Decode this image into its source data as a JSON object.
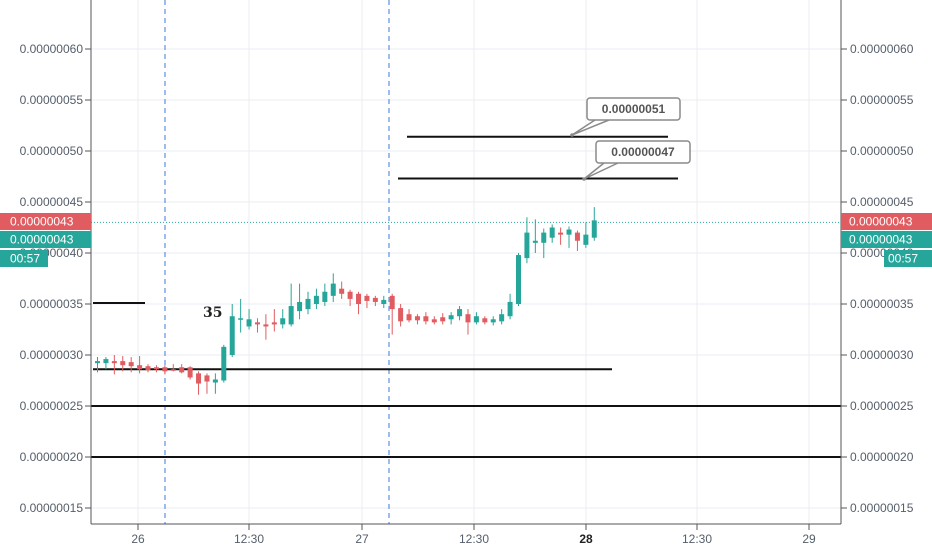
{
  "chart_data": {
    "type": "candlestick",
    "y_ticks": [
      "0.00000015",
      "0.00000020",
      "0.00000025",
      "0.00000030",
      "0.00000035",
      "0.00000040",
      "0.00000045",
      "0.00000050",
      "0.00000055",
      "0.00000060"
    ],
    "ylim": [
      1.35e-07,
      6.45e-07
    ],
    "x_ticks": [
      "26",
      "12:30",
      "27",
      "12:30",
      "28",
      "12:30",
      "29"
    ],
    "x_tick_bold": "28",
    "horizontal_lines": [
      2e-07,
      2.5e-07,
      2.86e-07,
      3.51e-07,
      4.73e-07,
      5.14e-07
    ],
    "price_tags": [
      {
        "label": "0.00000043",
        "value": 4.3e-07,
        "color": "#e05c60"
      },
      {
        "label": "0.00000043",
        "value": 4.3e-07,
        "color": "#26a69a"
      },
      {
        "label": "00:57",
        "color": "#26a69a"
      }
    ],
    "callouts": [
      "0.00000051",
      "0.00000047"
    ],
    "annotation": "35",
    "current_price": 4.3e-07,
    "candles": [
      {
        "o": 2.92e-07,
        "h": 2.98e-07,
        "l": 2.83e-07,
        "c": 2.94e-07
      },
      {
        "o": 2.92e-07,
        "h": 2.98e-07,
        "l": 2.86e-07,
        "c": 2.96e-07
      },
      {
        "o": 2.94e-07,
        "h": 3e-07,
        "l": 2.81e-07,
        "c": 2.92e-07
      },
      {
        "o": 2.94e-07,
        "h": 2.99e-07,
        "l": 2.84e-07,
        "c": 2.9e-07
      },
      {
        "o": 2.93e-07,
        "h": 2.98e-07,
        "l": 2.83e-07,
        "c": 2.89e-07
      },
      {
        "o": 2.9e-07,
        "h": 2.99e-07,
        "l": 2.82e-07,
        "c": 2.86e-07
      },
      {
        "o": 2.89e-07,
        "h": 2.91e-07,
        "l": 2.83e-07,
        "c": 2.85e-07
      },
      {
        "o": 2.88e-07,
        "h": 2.9e-07,
        "l": 2.83e-07,
        "c": 2.86e-07
      },
      {
        "o": 2.88e-07,
        "h": 2.9e-07,
        "l": 2.81e-07,
        "c": 2.84e-07
      },
      {
        "o": 2.86e-07,
        "h": 2.91e-07,
        "l": 2.84e-07,
        "c": 2.85e-07
      },
      {
        "o": 2.88e-07,
        "h": 2.91e-07,
        "l": 2.82e-07,
        "c": 2.83e-07
      },
      {
        "o": 2.88e-07,
        "h": 2.89e-07,
        "l": 2.76e-07,
        "c": 2.78e-07
      },
      {
        "o": 2.82e-07,
        "h": 2.84e-07,
        "l": 2.61e-07,
        "c": 2.72e-07
      },
      {
        "o": 2.8e-07,
        "h": 2.82e-07,
        "l": 2.62e-07,
        "c": 2.74e-07
      },
      {
        "o": 2.73e-07,
        "h": 2.82e-07,
        "l": 2.62e-07,
        "c": 2.76e-07
      },
      {
        "o": 2.75e-07,
        "h": 3.1e-07,
        "l": 2.73e-07,
        "c": 3.08e-07
      },
      {
        "o": 3e-07,
        "h": 3.5e-07,
        "l": 2.98e-07,
        "c": 3.38e-07
      },
      {
        "o": 3.35e-07,
        "h": 3.55e-07,
        "l": 3.22e-07,
        "c": 3.36e-07
      },
      {
        "o": 3.28e-07,
        "h": 3.45e-07,
        "l": 3.25e-07,
        "c": 3.35e-07
      },
      {
        "o": 3.32e-07,
        "h": 3.36e-07,
        "l": 3.22e-07,
        "c": 3.3e-07
      },
      {
        "o": 3.3e-07,
        "h": 3.4e-07,
        "l": 3.15e-07,
        "c": 3.28e-07
      },
      {
        "o": 3.32e-07,
        "h": 3.45e-07,
        "l": 3.23e-07,
        "c": 3.3e-07
      },
      {
        "o": 3.3e-07,
        "h": 3.45e-07,
        "l": 3.26e-07,
        "c": 3.36e-07
      },
      {
        "o": 3.3e-07,
        "h": 3.7e-07,
        "l": 3.28e-07,
        "c": 3.48e-07
      },
      {
        "o": 3.43e-07,
        "h": 3.7e-07,
        "l": 3.35e-07,
        "c": 3.52e-07
      },
      {
        "o": 3.45e-07,
        "h": 3.62e-07,
        "l": 3.4e-07,
        "c": 3.55e-07
      },
      {
        "o": 3.5e-07,
        "h": 3.65e-07,
        "l": 3.45e-07,
        "c": 3.58e-07
      },
      {
        "o": 3.52e-07,
        "h": 3.7e-07,
        "l": 3.48e-07,
        "c": 3.62e-07
      },
      {
        "o": 3.58e-07,
        "h": 3.8e-07,
        "l": 3.52e-07,
        "c": 3.7e-07
      },
      {
        "o": 3.65e-07,
        "h": 3.72e-07,
        "l": 3.55e-07,
        "c": 3.6e-07
      },
      {
        "o": 3.62e-07,
        "h": 3.64e-07,
        "l": 3.48e-07,
        "c": 3.55e-07
      },
      {
        "o": 3.6e-07,
        "h": 3.62e-07,
        "l": 3.4e-07,
        "c": 3.5e-07
      },
      {
        "o": 3.58e-07,
        "h": 3.6e-07,
        "l": 3.46e-07,
        "c": 3.53e-07
      },
      {
        "o": 3.56e-07,
        "h": 3.58e-07,
        "l": 3.48e-07,
        "c": 3.52e-07
      },
      {
        "o": 3.5e-07,
        "h": 3.58e-07,
        "l": 3.46e-07,
        "c": 3.54e-07
      },
      {
        "o": 3.58e-07,
        "h": 3.6e-07,
        "l": 3.2e-07,
        "c": 3.45e-07
      },
      {
        "o": 3.46e-07,
        "h": 3.5e-07,
        "l": 3.28e-07,
        "c": 3.33e-07
      },
      {
        "o": 3.4e-07,
        "h": 3.45e-07,
        "l": 3.32e-07,
        "c": 3.34e-07
      },
      {
        "o": 3.38e-07,
        "h": 3.4e-07,
        "l": 3.3e-07,
        "c": 3.34e-07
      },
      {
        "o": 3.38e-07,
        "h": 3.42e-07,
        "l": 3.3e-07,
        "c": 3.33e-07
      },
      {
        "o": 3.35e-07,
        "h": 3.38e-07,
        "l": 3.3e-07,
        "c": 3.32e-07
      },
      {
        "o": 3.37e-07,
        "h": 3.41e-07,
        "l": 3.3e-07,
        "c": 3.33e-07
      },
      {
        "o": 3.35e-07,
        "h": 3.42e-07,
        "l": 3.3e-07,
        "c": 3.39e-07
      },
      {
        "o": 3.38e-07,
        "h": 3.48e-07,
        "l": 3.34e-07,
        "c": 3.45e-07
      },
      {
        "o": 3.4e-07,
        "h": 3.45e-07,
        "l": 3.2e-07,
        "c": 3.32e-07
      },
      {
        "o": 3.32e-07,
        "h": 3.42e-07,
        "l": 3.3e-07,
        "c": 3.38e-07
      },
      {
        "o": 3.36e-07,
        "h": 3.38e-07,
        "l": 3.3e-07,
        "c": 3.32e-07
      },
      {
        "o": 3.32e-07,
        "h": 3.38e-07,
        "l": 3.29e-07,
        "c": 3.35e-07
      },
      {
        "o": 3.33e-07,
        "h": 3.45e-07,
        "l": 3.3e-07,
        "c": 3.4e-07
      },
      {
        "o": 3.38e-07,
        "h": 3.6e-07,
        "l": 3.35e-07,
        "c": 3.52e-07
      },
      {
        "o": 3.5e-07,
        "h": 4e-07,
        "l": 3.48e-07,
        "c": 3.98e-07
      },
      {
        "o": 3.95e-07,
        "h": 4.35e-07,
        "l": 3.9e-07,
        "c": 4.2e-07
      },
      {
        "o": 4.1e-07,
        "h": 4.33e-07,
        "l": 4e-07,
        "c": 4.12e-07
      },
      {
        "o": 4.1e-07,
        "h": 4.24e-07,
        "l": 3.95e-07,
        "c": 4.2e-07
      },
      {
        "o": 4.15e-07,
        "h": 4.28e-07,
        "l": 4.1e-07,
        "c": 4.25e-07
      },
      {
        "o": 4.2e-07,
        "h": 4.25e-07,
        "l": 4.08e-07,
        "c": 4.18e-07
      },
      {
        "o": 4.18e-07,
        "h": 4.26e-07,
        "l": 4.05e-07,
        "c": 4.23e-07
      },
      {
        "o": 4.2e-07,
        "h": 4.22e-07,
        "l": 4.02e-07,
        "c": 4.12e-07
      },
      {
        "o": 4.08e-07,
        "h": 4.3e-07,
        "l": 4.05e-07,
        "c": 4.18e-07
      },
      {
        "o": 4.15e-07,
        "h": 4.45e-07,
        "l": 4.12e-07,
        "c": 4.32e-07
      }
    ]
  }
}
